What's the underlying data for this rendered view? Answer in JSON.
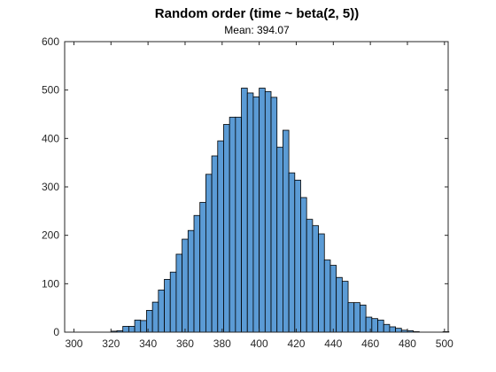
{
  "chart_data": {
    "type": "bar",
    "title": "Random order (time ~ beta(2, 5))",
    "subtitle": "Mean: 394.07",
    "xlabel": "",
    "ylabel": "",
    "xlim": [
      295,
      502
    ],
    "ylim": [
      0,
      600
    ],
    "xticks": [
      300,
      320,
      340,
      360,
      380,
      400,
      420,
      440,
      460,
      480,
      500
    ],
    "yticks": [
      0,
      100,
      200,
      300,
      400,
      500,
      600
    ],
    "bin_width": 3.2,
    "bin_start": 320,
    "values": [
      2,
      3,
      12,
      12,
      25,
      24,
      45,
      62,
      87,
      109,
      124,
      161,
      192,
      210,
      241,
      268,
      326,
      364,
      395,
      429,
      444,
      444,
      504,
      494,
      486,
      504,
      497,
      485,
      382,
      417,
      329,
      314,
      278,
      233,
      220,
      203,
      149,
      138,
      113,
      105,
      61,
      61,
      56,
      31,
      28,
      25,
      16,
      11,
      8,
      4,
      3,
      1,
      0,
      0,
      0,
      0,
      1
    ],
    "bar_color": "#5b9bd5",
    "grid": false,
    "box": true
  }
}
